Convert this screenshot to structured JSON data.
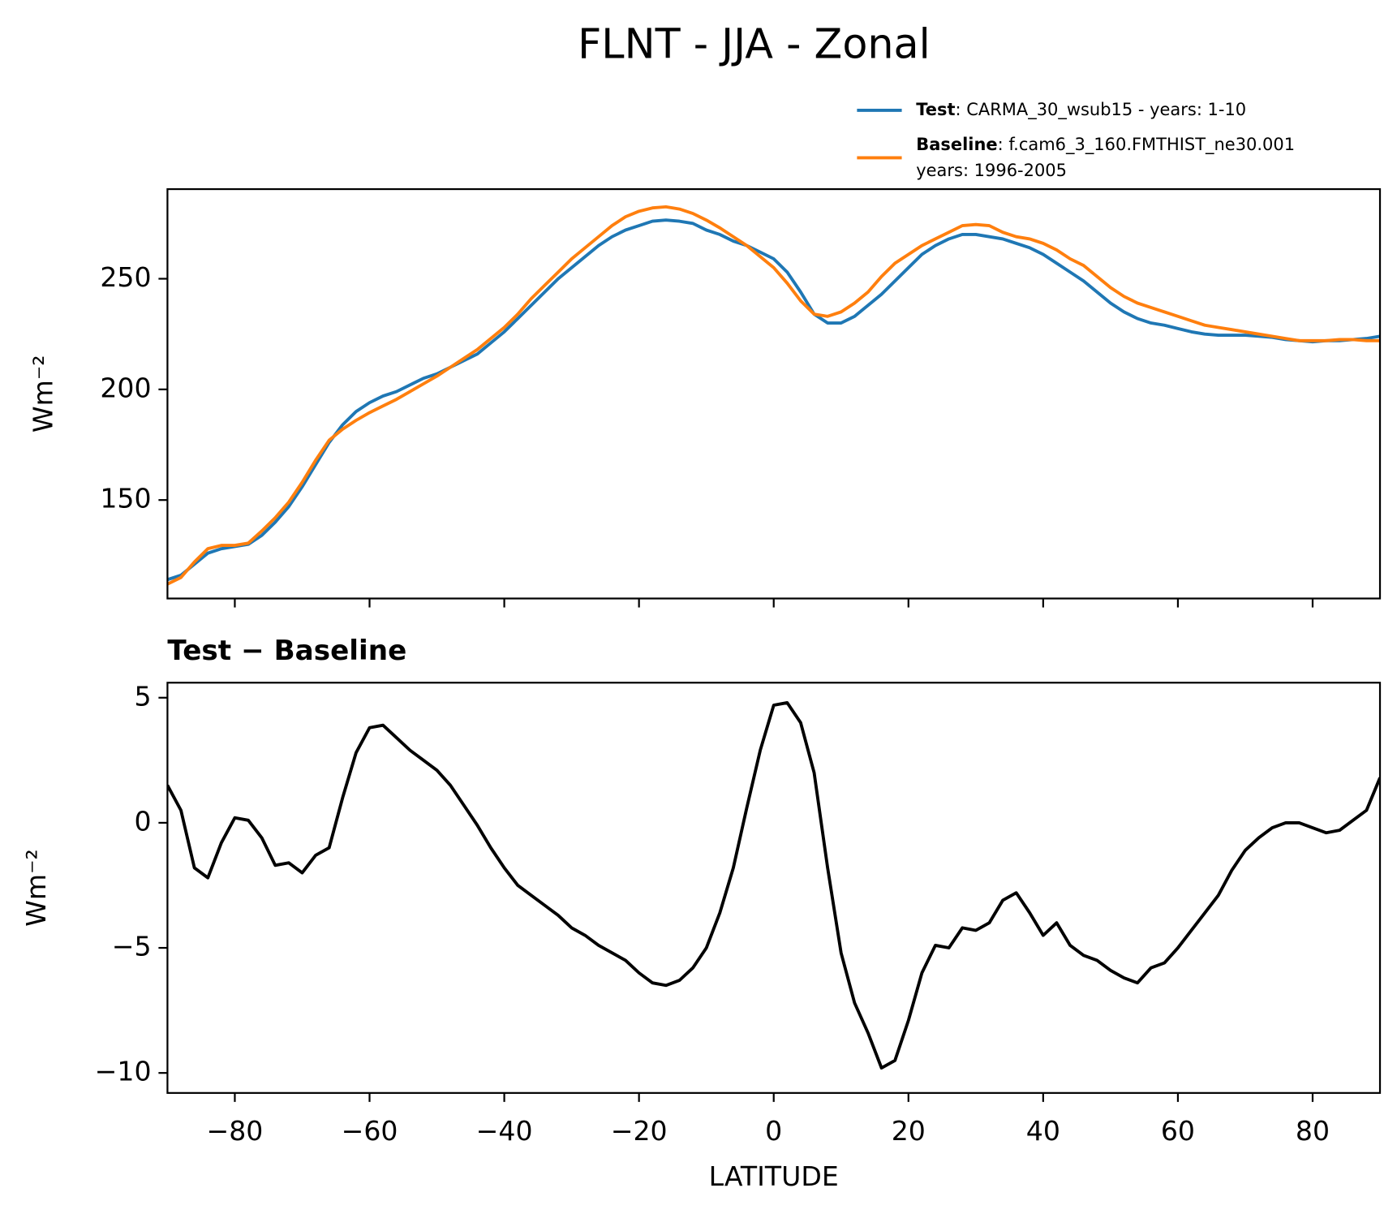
{
  "chart_data": [
    {
      "type": "line",
      "title": "FLNT - JJA - Zonal",
      "ylabel": "Wm⁻²",
      "legend": "upper right",
      "x": [
        -90,
        -88,
        -86,
        -84,
        -82,
        -80,
        -78,
        -76,
        -74,
        -72,
        -70,
        -68,
        -66,
        -64,
        -62,
        -60,
        -58,
        -56,
        -54,
        -52,
        -50,
        -48,
        -46,
        -44,
        -42,
        -40,
        -38,
        -36,
        -34,
        -32,
        -30,
        -28,
        -26,
        -24,
        -22,
        -20,
        -18,
        -16,
        -14,
        -12,
        -10,
        -8,
        -6,
        -4,
        -2,
        0,
        2,
        4,
        6,
        8,
        10,
        12,
        14,
        16,
        18,
        20,
        22,
        24,
        26,
        28,
        30,
        32,
        34,
        36,
        38,
        40,
        42,
        44,
        46,
        48,
        50,
        52,
        54,
        56,
        58,
        60,
        62,
        64,
        66,
        68,
        70,
        72,
        74,
        76,
        78,
        80,
        82,
        84,
        86,
        88,
        90
      ],
      "series": [
        {
          "name": "Test",
          "description": [
            ": CARMA_30_wsub15 - years: 1-10"
          ],
          "color": "#1f77b4",
          "values": [
            114,
            116,
            121,
            126,
            128,
            129,
            130,
            134,
            140,
            147,
            156,
            166,
            176,
            184,
            190,
            194,
            197,
            199,
            202,
            205,
            207,
            210,
            213,
            216,
            221,
            226,
            232,
            238,
            244,
            250,
            255,
            260,
            265,
            269,
            272,
            274,
            276,
            276.5,
            276,
            275,
            272,
            270,
            267,
            265,
            262,
            259,
            253,
            244,
            234,
            230,
            230,
            233,
            238,
            243,
            249,
            255,
            261,
            265,
            268,
            270,
            270,
            269,
            268,
            266,
            264,
            261,
            257,
            253,
            249,
            244,
            239,
            235,
            232,
            230,
            229,
            227.5,
            226,
            225,
            224.5,
            224.5,
            224.5,
            224,
            223.5,
            222.5,
            222,
            221.5,
            222,
            222,
            222.5,
            223,
            224
          ]
        },
        {
          "name": "Baseline",
          "description": [
            ": f.cam6_3_160.FMTHIST_ne30.001",
            "years: 1996-2005"
          ],
          "color": "#ff7f0e",
          "values": [
            112,
            115,
            122,
            128,
            129.5,
            129.5,
            130.5,
            136,
            142,
            149,
            158,
            168,
            177,
            182,
            186,
            189.5,
            192.5,
            195.5,
            199,
            202.5,
            206,
            210,
            214,
            218,
            223,
            228,
            234,
            241,
            247,
            253,
            259,
            264,
            269,
            274,
            278,
            280.5,
            282,
            282.5,
            281.5,
            279.5,
            276.5,
            273,
            269,
            265,
            260,
            255,
            248,
            240,
            234,
            233,
            235,
            239,
            244,
            251,
            257,
            261,
            265,
            268,
            271,
            274,
            274.5,
            274,
            271,
            269,
            268,
            266,
            263,
            259,
            256,
            251,
            246,
            242,
            239,
            237,
            235,
            233,
            231,
            229,
            228,
            227,
            226,
            225,
            224,
            223,
            222,
            222,
            222,
            222.5,
            222.5,
            222,
            222
          ]
        }
      ],
      "xlim": [
        -90,
        90
      ],
      "xticks": [
        -80,
        -60,
        -40,
        -20,
        0,
        20,
        40,
        60,
        80
      ],
      "ylim": [
        105.5,
        290.5
      ],
      "yticks": [
        150,
        200,
        250
      ]
    },
    {
      "type": "line",
      "title": "Test − Baseline",
      "ylabel": "Wm⁻²",
      "xlabel": "LATITUDE",
      "x": [
        -90,
        -88,
        -86,
        -84,
        -82,
        -80,
        -78,
        -76,
        -74,
        -72,
        -70,
        -68,
        -66,
        -64,
        -62,
        -60,
        -58,
        -56,
        -54,
        -52,
        -50,
        -48,
        -46,
        -44,
        -42,
        -40,
        -38,
        -36,
        -34,
        -32,
        -30,
        -28,
        -26,
        -24,
        -22,
        -20,
        -18,
        -16,
        -14,
        -12,
        -10,
        -8,
        -6,
        -4,
        -2,
        0,
        2,
        4,
        6,
        8,
        10,
        12,
        14,
        16,
        18,
        20,
        22,
        24,
        26,
        28,
        30,
        32,
        34,
        36,
        38,
        40,
        42,
        44,
        46,
        48,
        50,
        52,
        54,
        56,
        58,
        60,
        62,
        64,
        66,
        68,
        70,
        72,
        74,
        76,
        78,
        80,
        82,
        84,
        86,
        88,
        90
      ],
      "series": [
        {
          "color": "#000000",
          "values": [
            1.5,
            0.5,
            -1.8,
            -2.2,
            -0.8,
            0.2,
            0.1,
            -0.6,
            -1.7,
            -1.6,
            -2.0,
            -1.3,
            -1.0,
            1.0,
            2.8,
            3.8,
            3.9,
            3.4,
            2.9,
            2.5,
            2.1,
            1.5,
            0.7,
            -0.1,
            -1.0,
            -1.8,
            -2.5,
            -2.9,
            -3.3,
            -3.7,
            -4.2,
            -4.5,
            -4.9,
            -5.2,
            -5.5,
            -6.0,
            -6.4,
            -6.5,
            -6.3,
            -5.8,
            -5.0,
            -3.6,
            -1.8,
            0.6,
            2.9,
            4.7,
            4.8,
            4.0,
            2.0,
            -1.8,
            -5.2,
            -7.2,
            -8.4,
            -9.8,
            -9.5,
            -7.9,
            -6.0,
            -4.9,
            -5.0,
            -4.2,
            -4.3,
            -4.0,
            -3.1,
            -2.8,
            -3.6,
            -4.5,
            -4.0,
            -4.9,
            -5.3,
            -5.5,
            -5.9,
            -6.2,
            -6.4,
            -5.8,
            -5.6,
            -5.0,
            -4.3,
            -3.6,
            -2.9,
            -1.9,
            -1.1,
            -0.6,
            -0.2,
            0.0,
            0.0,
            -0.2,
            -0.4,
            -0.3,
            0.1,
            0.5,
            1.8
          ]
        }
      ],
      "xlim": [
        -90,
        90
      ],
      "xticks": [
        {
          "value": -80,
          "label": "−80"
        },
        {
          "value": -60,
          "label": "−60"
        },
        {
          "value": -40,
          "label": "−40"
        },
        {
          "value": -20,
          "label": "−20"
        },
        0,
        20,
        40,
        60,
        80
      ],
      "ylim": [
        -10.8,
        5.6
      ],
      "yticks": [
        {
          "value": -10,
          "label": "−10"
        },
        {
          "value": -5,
          "label": "−5"
        },
        0,
        5
      ]
    }
  ]
}
